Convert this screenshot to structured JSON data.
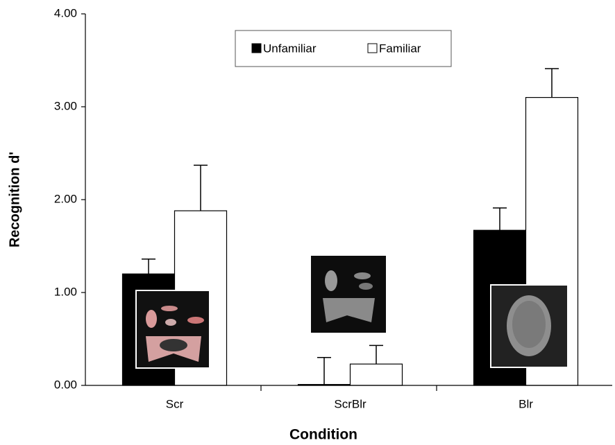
{
  "chart_data": {
    "type": "bar",
    "x_label": "Condition",
    "y_label": "Recognition d'",
    "categories": [
      "Scr",
      "ScrBlr",
      "Blr"
    ],
    "series": [
      {
        "name": "Unfamiliar",
        "color": "#000000",
        "values": [
          1.2,
          0.01,
          1.67
        ],
        "errors": [
          0.16,
          0.29,
          0.24
        ]
      },
      {
        "name": "Familiar",
        "color": "#ffffff",
        "values": [
          1.88,
          0.23,
          3.1
        ],
        "errors": [
          0.49,
          0.2,
          0.31
        ]
      }
    ],
    "ylim": [
      0,
      4
    ],
    "yticks": [
      {
        "value": 0,
        "label": "0.00"
      },
      {
        "value": 1,
        "label": "1.00"
      },
      {
        "value": 2,
        "label": "2.00"
      },
      {
        "value": 3,
        "label": "3.00"
      },
      {
        "value": 4,
        "label": "4.00"
      }
    ],
    "legend": "top-center"
  }
}
